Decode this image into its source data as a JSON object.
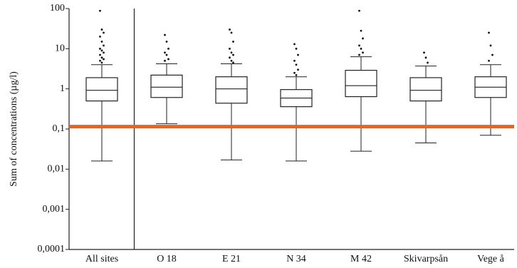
{
  "chart_data": {
    "type": "box",
    "y_label": "Sum of concentrations (µg/l)",
    "log_scale": true,
    "ylim": [
      0.0001,
      100
    ],
    "yticks": [
      100,
      10,
      1,
      {
        "value": 0.1,
        "label": "0,1"
      },
      {
        "value": 0.01,
        "label": "0,01"
      },
      {
        "value": 0.001,
        "label": "0,001"
      },
      {
        "value": 0.0001,
        "label": "0,0001"
      }
    ],
    "categories": [
      "All sites",
      "O 18",
      "E 21",
      "N 34",
      "M 42",
      "Skivarpsån",
      "Vege å"
    ],
    "box_color": "#ffffff",
    "line_color": "#222222",
    "boxes": [
      {
        "whisker_low": 0.016,
        "q1": 0.5,
        "median": 0.92,
        "q3": 1.9,
        "whisker_high": 4.0,
        "outliers": [
          88,
          30,
          25,
          20,
          15,
          12,
          10,
          9,
          8,
          7,
          6,
          5.5,
          5,
          4.5
        ]
      },
      {
        "whisker_low": 0.135,
        "q1": 0.61,
        "median": 1.1,
        "q3": 2.2,
        "whisker_high": 4.2,
        "outliers": [
          22,
          15,
          10,
          8,
          7,
          5.5,
          5
        ]
      },
      {
        "whisker_low": 0.017,
        "q1": 0.44,
        "median": 1.0,
        "q3": 2.0,
        "whisker_high": 4.2,
        "outliers": [
          30,
          25,
          15,
          10,
          8,
          7,
          6,
          5,
          4.5
        ]
      },
      {
        "whisker_low": 0.016,
        "q1": 0.36,
        "median": 0.59,
        "q3": 0.96,
        "whisker_high": 2.0,
        "outliers": [
          13,
          10,
          7,
          5,
          4,
          3,
          2.5,
          2.2
        ]
      },
      {
        "whisker_low": 0.028,
        "q1": 0.64,
        "median": 1.2,
        "q3": 2.9,
        "whisker_high": 6.3,
        "outliers": [
          88,
          28,
          18,
          12,
          10,
          8,
          7
        ]
      },
      {
        "whisker_low": 0.045,
        "q1": 0.5,
        "median": 0.92,
        "q3": 1.9,
        "whisker_high": 3.7,
        "outliers": [
          8,
          6,
          4.5
        ]
      },
      {
        "whisker_low": 0.07,
        "q1": 0.61,
        "median": 1.1,
        "q3": 2.0,
        "whisker_high": 4.0,
        "outliers": [
          25,
          12,
          7,
          5
        ]
      }
    ],
    "threshold": {
      "value": 0.115,
      "color": "#e8641e"
    }
  }
}
